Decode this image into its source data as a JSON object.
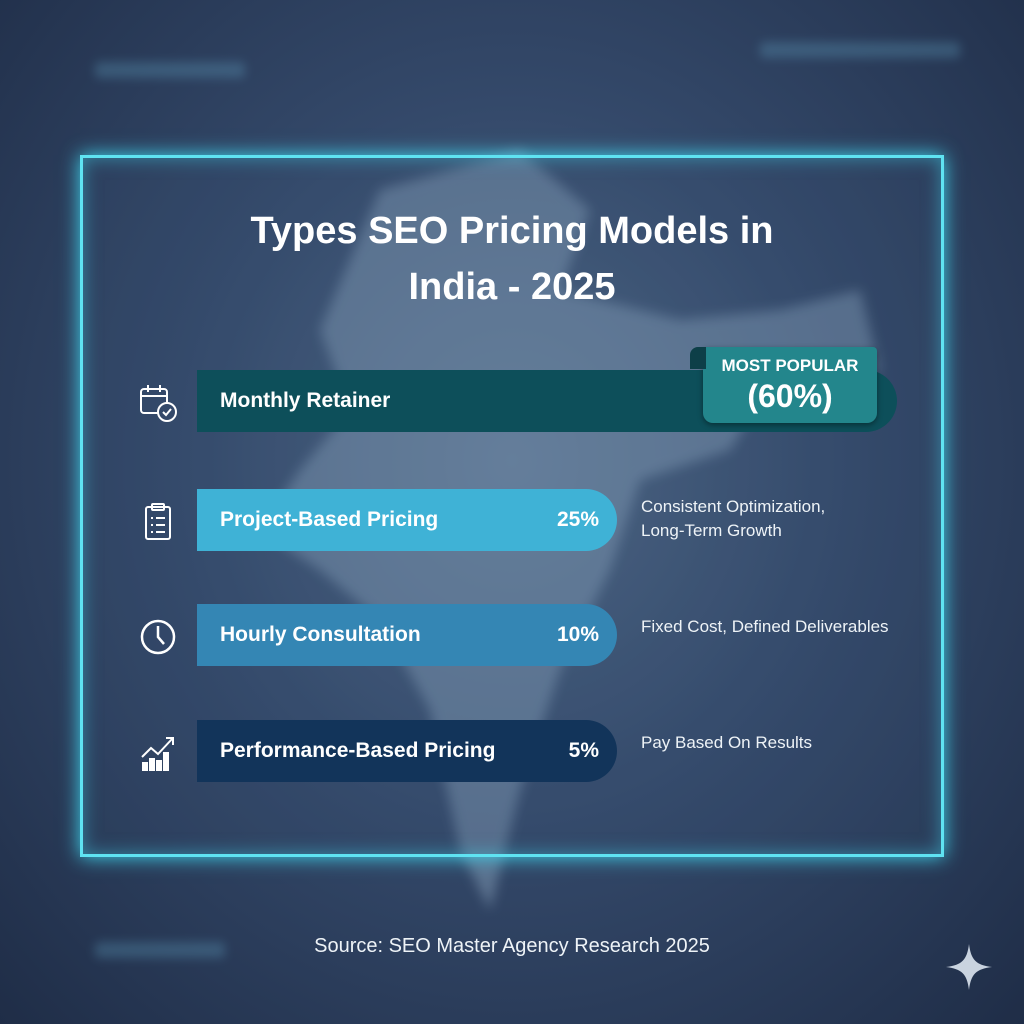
{
  "title_line1": "Types SEO Pricing Models in",
  "title_line2": "India - 2025",
  "badge": {
    "label": "MOST POPULAR",
    "value": "(60%)"
  },
  "colors": {
    "frame": "#5fe3f2",
    "monthly": "#0d4f5a",
    "project": "#3fb2d6",
    "hourly": "#3486b4",
    "performance": "#12345a"
  },
  "chart_data": {
    "type": "bar",
    "orientation": "horizontal",
    "categories": [
      "Monthly Retainer",
      "Project-Based Pricing",
      "Hourly Consultation",
      "Performance-Based Pricing"
    ],
    "values": [
      60,
      25,
      10,
      5
    ],
    "value_labels": [
      "(60%)",
      "25%",
      "10%",
      "5%"
    ],
    "icons": [
      "calendar-check-icon",
      "clipboard-list-icon",
      "clock-icon",
      "growth-chart-icon"
    ],
    "descriptions": [
      "",
      "Consistent Optimization, Long-Term Growth",
      "Fixed Cost, Defined Deliverables",
      "Pay Based On Results"
    ],
    "desc_lines": {
      "project": [
        "Consistent Optimization,",
        "Long-Term Growth"
      ]
    }
  },
  "source": "Source: SEO Master Agency Research 2025"
}
